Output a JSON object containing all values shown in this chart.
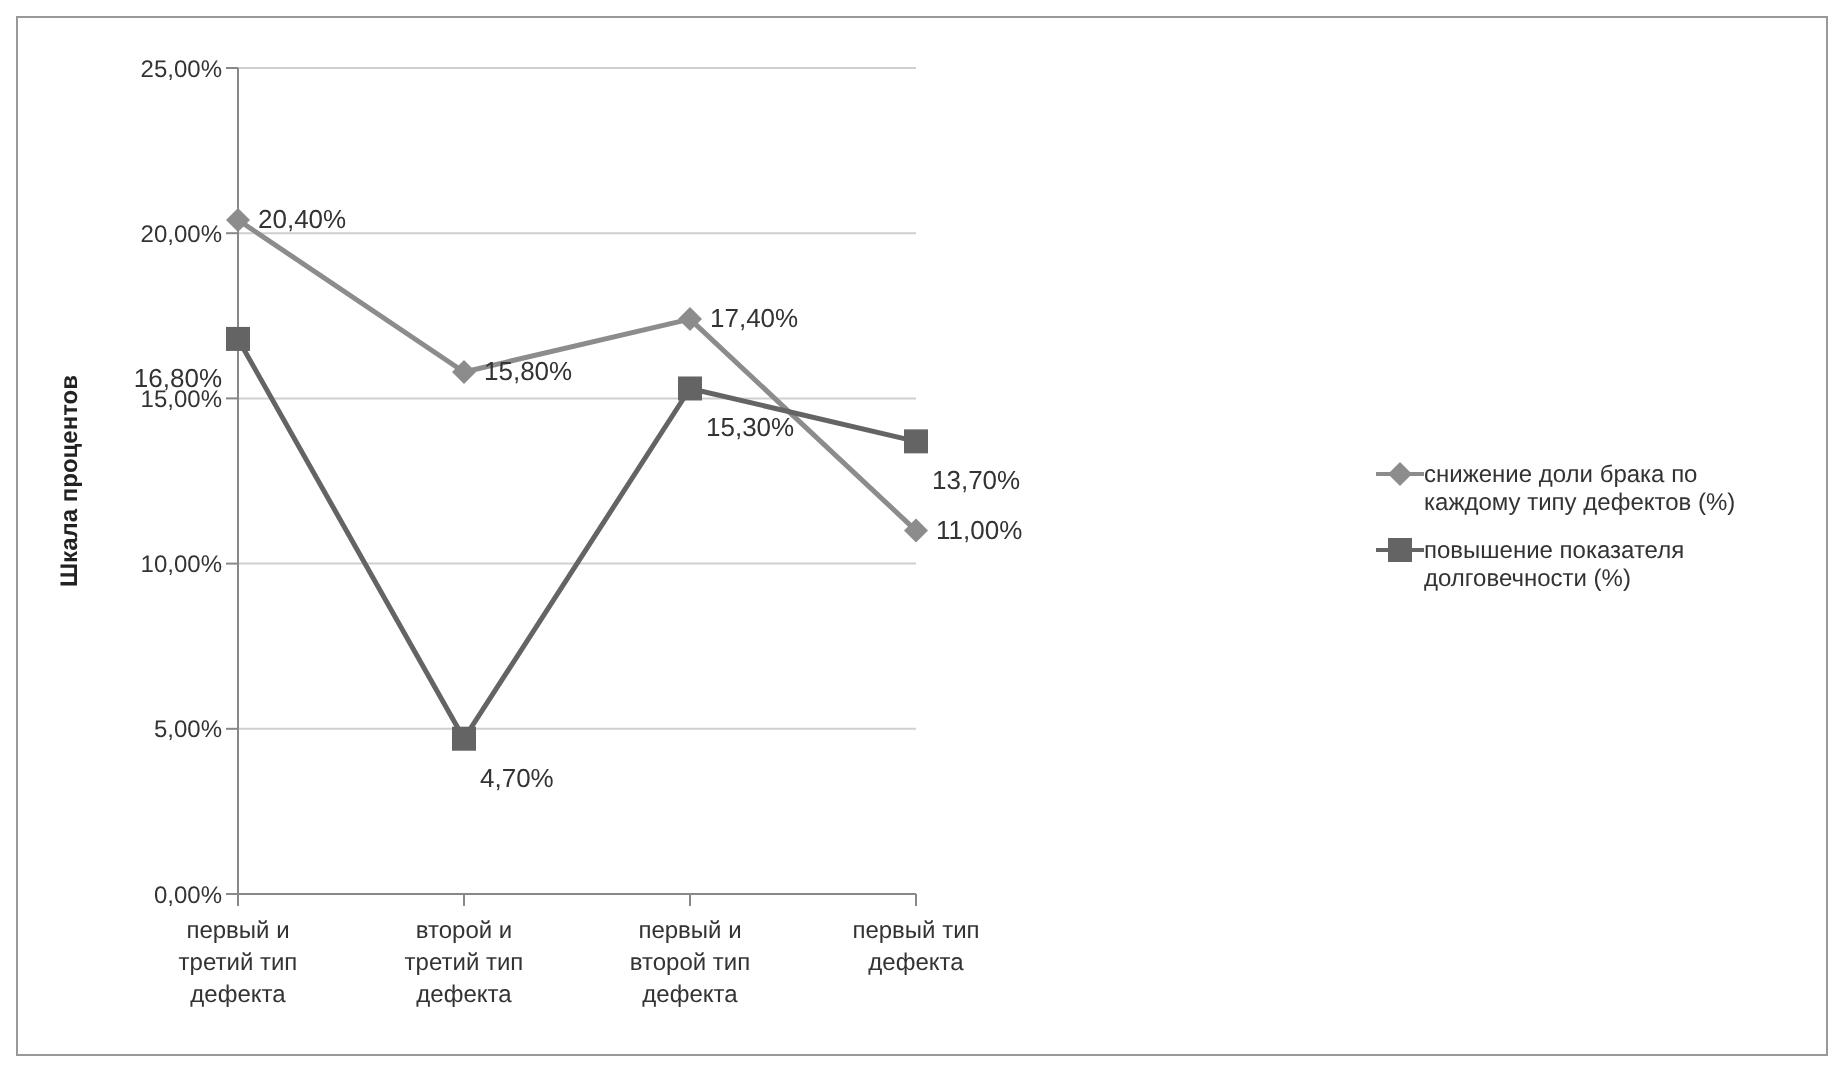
{
  "chart_data": {
    "type": "line",
    "ylabel": "Шкала процентов",
    "categories": [
      "первый  и третий тип дефекта",
      "второй и третий тип дефекта",
      "первый и второй тип дефекта",
      "первый тип дефекта"
    ],
    "series": [
      {
        "name": "снижение доли брака по каждому типу дефектов (%)",
        "color": "#8c8c8c",
        "marker": "diamond",
        "values": [
          20.4,
          15.8,
          17.4,
          11.0
        ],
        "value_labels": [
          "20,40%",
          "15,80%",
          "17,40%",
          "11,00%"
        ]
      },
      {
        "name": "повышение показателя долговечности (%)",
        "color": "#646464",
        "marker": "square",
        "values": [
          16.8,
          4.7,
          15.3,
          13.7
        ],
        "value_labels": [
          "16,80%",
          "4,70%",
          "15,30%",
          "13,70%"
        ]
      }
    ],
    "ylim": [
      0,
      25
    ],
    "yticks": [
      {
        "value": 0,
        "label": "0,00%"
      },
      {
        "value": 5,
        "label": "5,00%"
      },
      {
        "value": 10,
        "label": "10,00%"
      },
      {
        "value": 15,
        "label": "15,00%"
      },
      {
        "value": 20,
        "label": "20,00%"
      },
      {
        "value": 25,
        "label": "25,00%"
      }
    ],
    "grid": "y",
    "legend": "right"
  }
}
